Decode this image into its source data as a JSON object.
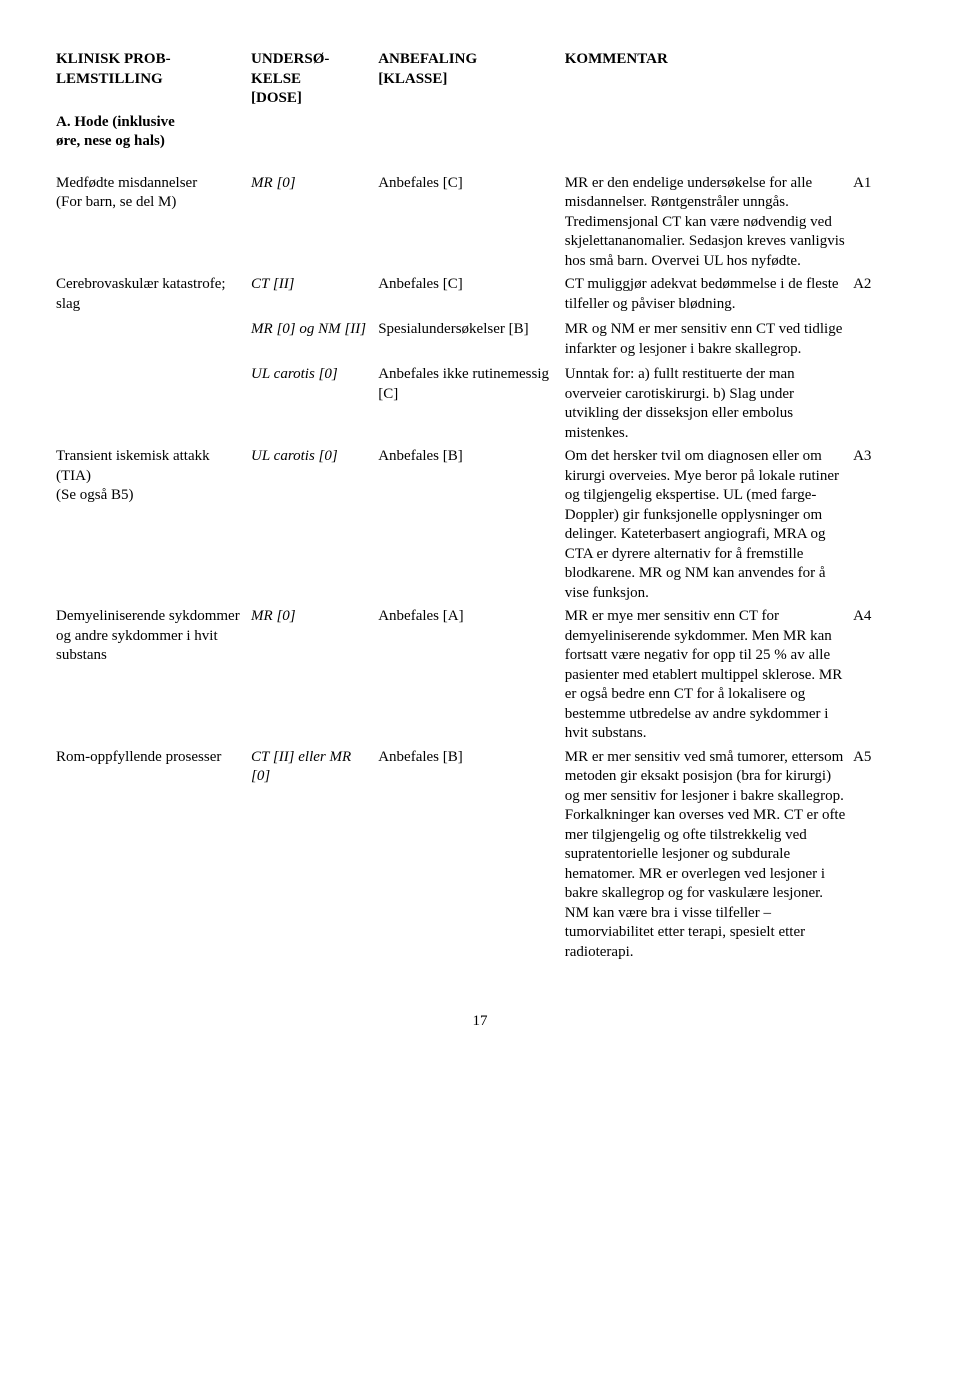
{
  "header": {
    "col1a": "KLINISK PROB-",
    "col1b": "LEMSTILLING",
    "col2a": "UNDERSØ-",
    "col2b": "KELSE",
    "col2c": "[DOSE]",
    "col3a": "ANBEFALING",
    "col3b": "[KLASSE]",
    "col4": "KOMMENTAR",
    "section_a1": "A. Hode (inklusive",
    "section_a2": "øre, nese og hals)"
  },
  "rows": {
    "r1": {
      "problem": "Medfødte misdannelser\n(For barn, se del M)",
      "exam": "MR [0]",
      "rec": "Anbefales [C]",
      "comment": "MR er den endelige undersøkelse for alle misdannelser. Røntgenstråler unngås. Tredimensjonal CT kan være nødvendig ved skjelettananomalier. Sedasjon kreves vanligvis hos små barn. Overvei UL hos nyfødte.",
      "code": "A1"
    },
    "r2": {
      "problem": "Cerebrovaskulær katastrofe; slag",
      "exam": "CT [II]",
      "rec": "Anbefales [C]",
      "comment": "CT muliggjør adekvat bedømmelse i de fleste tilfeller og påviser blødning.",
      "code": "A2",
      "sub1_exam": "MR [0] og NM [II]",
      "sub1_rec": "Spesialundersøkelser [B]",
      "sub1_comment": "MR og NM er mer sensitiv enn CT ved tidlige infarkter og lesjoner i bakre skallegrop.",
      "sub2_exam": "UL carotis [0]",
      "sub2_rec": "Anbefales ikke rutinemessig [C]",
      "sub2_comment": "Unntak for: a) fullt restituerte der man overveier carotiskirurgi. b) Slag under utvikling der disseksjon eller embolus mistenkes."
    },
    "r3": {
      "problem": "Transient iskemisk attakk (TIA)\n(Se også B5)",
      "exam": "UL carotis [0]",
      "rec": "Anbefales [B]",
      "comment": "Om det hersker tvil om diagnosen eller om kirurgi overveies. Mye beror på lokale rutiner og tilgjengelig ekspertise. UL (med farge-Doppler) gir funksjonelle opplysninger om delinger. Kateterbasert angiografi, MRA og CTA er dyrere alternativ for å fremstille blodkarene. MR og NM kan anvendes for å vise funksjon.",
      "code": "A3"
    },
    "r4": {
      "problem": "Demyeliniserende sykdommer og andre sykdommer i hvit substans",
      "exam": "MR [0]",
      "rec": "Anbefales [A]",
      "comment": "MR er mye mer sensitiv enn CT for demyeliniserende sykdommer. Men MR kan fortsatt være negativ for opp til 25 % av alle pasienter med etablert multippel sklerose. MR er også bedre enn CT for å lokalisere og bestemme utbredelse av andre sykdommer i hvit substans.",
      "code": "A4"
    },
    "r5": {
      "problem": "Rom-oppfyllende prosesser",
      "exam": "CT [II] eller MR [0]",
      "rec": "Anbefales [B]",
      "comment": "MR er mer sensitiv ved små tumorer, ettersom metoden gir eksakt posisjon (bra for kirurgi) og mer sensitiv for lesjoner i bakre skallegrop. Forkalkninger kan overses ved MR. CT er ofte mer tilgjengelig og ofte tilstrekkelig ved supratentorielle lesjoner og subdurale hematomer. MR er overlegen ved lesjoner i bakre skallegrop og for vaskulære lesjoner. NM kan være bra i visse tilfeller – tumorviabilitet etter terapi, spesielt etter radioterapi.",
      "code": "A5"
    }
  },
  "page_number": "17"
}
